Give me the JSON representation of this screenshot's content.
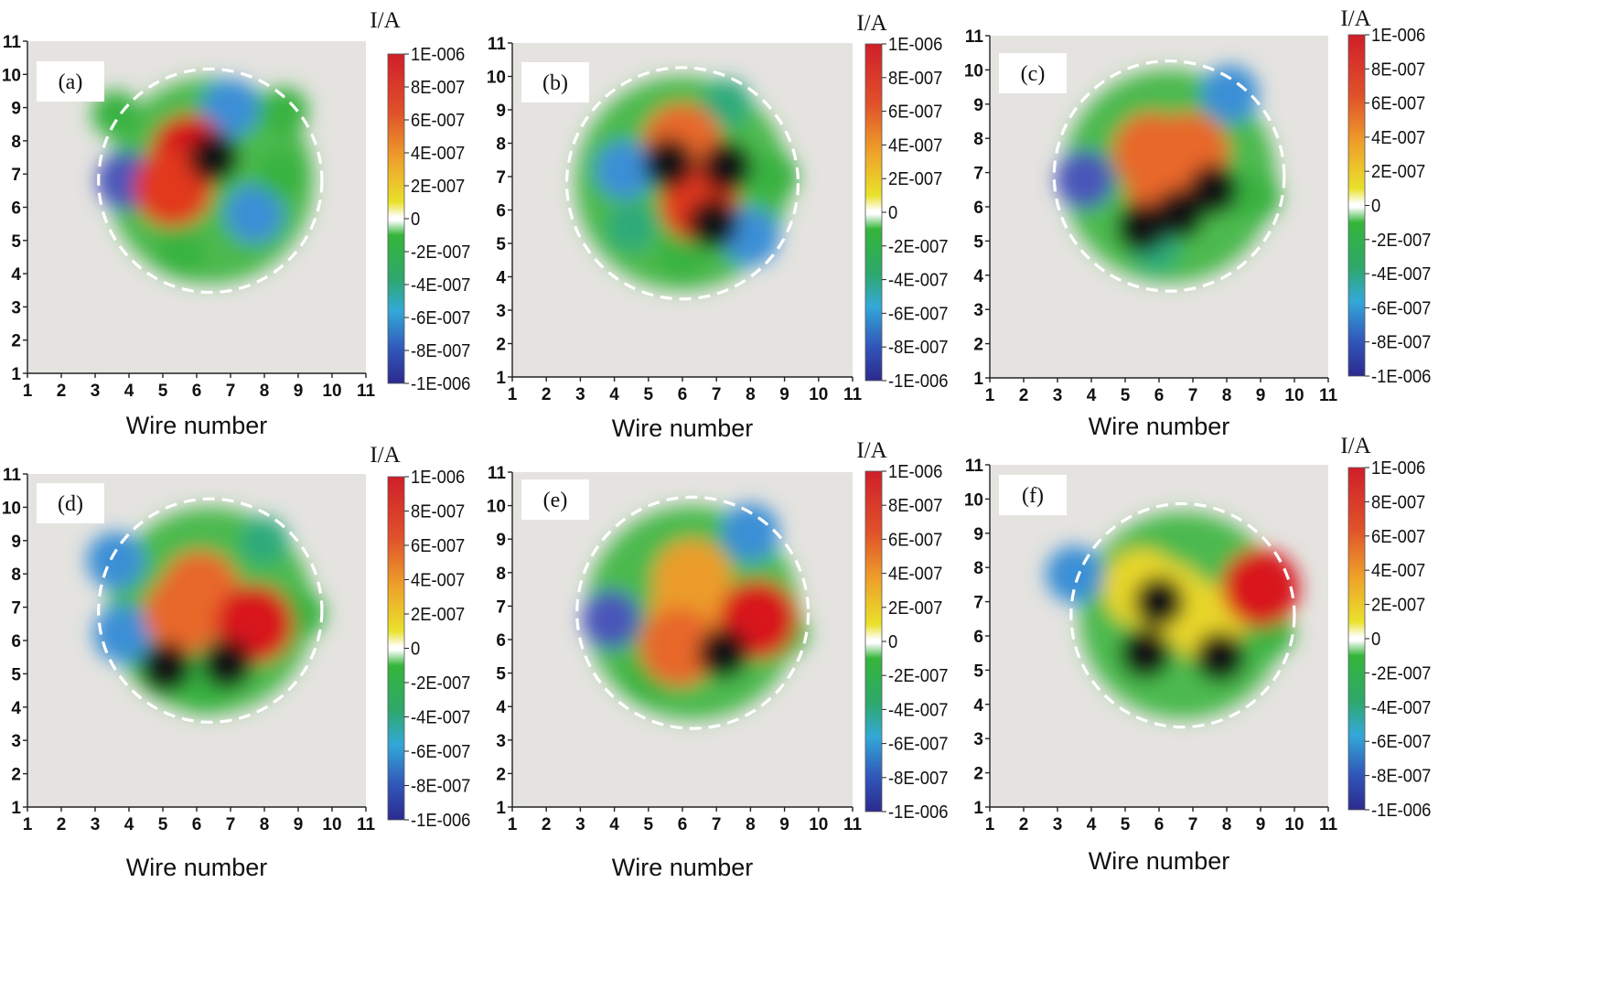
{
  "figure": {
    "xlabel": "Wire number",
    "ylabel": "",
    "colorbar_title": "I/A",
    "colorbar_ticks": [
      "1E-006",
      "8E-007",
      "6E-007",
      "4E-007",
      "2E-007",
      "0",
      "-2E-007",
      "-4E-007",
      "-6E-007",
      "-8E-007",
      "-1E-006"
    ]
  },
  "chart_data": [
    {
      "type": "heatmap",
      "panel": "(a)",
      "title": "",
      "xlabel": "Wire number",
      "ylabel": "",
      "x_ticks": [
        1,
        2,
        3,
        4,
        5,
        6,
        7,
        8,
        9,
        10,
        11
      ],
      "y_ticks": [
        1,
        2,
        3,
        4,
        5,
        6,
        7,
        8,
        9,
        10,
        11
      ],
      "xlim": [
        1,
        11
      ],
      "ylim": [
        1,
        11
      ],
      "colorbar": "I/A",
      "zlim": [
        -1e-06,
        1e-06
      ],
      "dashed_circle": {
        "center": [
          6.4,
          6.8
        ],
        "radius": 3.3
      },
      "features": [
        {
          "x": 5.8,
          "y": 7.6,
          "value": 1e-06
        },
        {
          "x": 6.5,
          "y": 7.5,
          "value": 2e-06
        },
        {
          "x": 5.3,
          "y": 6.6,
          "value": 8e-07
        },
        {
          "x": 3.9,
          "y": 6.8,
          "value": -8e-07
        },
        {
          "x": 7.7,
          "y": 5.8,
          "value": -7e-07
        },
        {
          "x": 7.0,
          "y": 9.0,
          "value": -7e-07
        },
        {
          "x": 8.5,
          "y": 7.0,
          "value": -3e-07
        },
        {
          "x": 5.5,
          "y": 4.6,
          "value": -3e-07
        },
        {
          "x": 3.6,
          "y": 8.8,
          "value": -3e-07
        },
        {
          "x": 8.6,
          "y": 8.9,
          "value": -3e-07
        }
      ]
    },
    {
      "type": "heatmap",
      "panel": "(b)",
      "title": "",
      "xlabel": "Wire number",
      "ylabel": "",
      "x_ticks": [
        1,
        2,
        3,
        4,
        5,
        6,
        7,
        8,
        9,
        10,
        11
      ],
      "y_ticks": [
        1,
        2,
        3,
        4,
        5,
        6,
        7,
        8,
        9,
        10,
        11
      ],
      "xlim": [
        1,
        11
      ],
      "ylim": [
        1,
        11
      ],
      "colorbar": "I/A",
      "zlim": [
        -1e-06,
        1e-06
      ],
      "dashed_circle": {
        "center": [
          6.0,
          6.8
        ],
        "radius": 3.4
      },
      "features": [
        {
          "x": 6.0,
          "y": 8.0,
          "value": 6e-07
        },
        {
          "x": 5.6,
          "y": 7.4,
          "value": 1.5e-06
        },
        {
          "x": 7.3,
          "y": 7.3,
          "value": 1.5e-06
        },
        {
          "x": 6.5,
          "y": 6.2,
          "value": 8e-07
        },
        {
          "x": 6.9,
          "y": 5.6,
          "value": 2e-06
        },
        {
          "x": 8.0,
          "y": 5.2,
          "value": -7e-07
        },
        {
          "x": 4.3,
          "y": 7.2,
          "value": -6e-07
        },
        {
          "x": 4.5,
          "y": 5.5,
          "value": -5e-07
        },
        {
          "x": 7.3,
          "y": 9.2,
          "value": -5e-07
        },
        {
          "x": 8.7,
          "y": 7.0,
          "value": -3e-07
        },
        {
          "x": 6.0,
          "y": 4.7,
          "value": -3e-07
        }
      ]
    },
    {
      "type": "heatmap",
      "panel": "(c)",
      "title": "",
      "xlabel": "Wire number",
      "ylabel": "",
      "x_ticks": [
        1,
        2,
        3,
        4,
        5,
        6,
        7,
        8,
        9,
        10,
        11
      ],
      "y_ticks": [
        1,
        2,
        3,
        4,
        5,
        6,
        7,
        8,
        9,
        10,
        11
      ],
      "xlim": [
        1,
        11
      ],
      "ylim": [
        1,
        11
      ],
      "colorbar": "I/A",
      "zlim": [
        -1e-06,
        1e-06
      ],
      "dashed_circle": {
        "center": [
          6.3,
          6.9
        ],
        "radius": 3.4
      },
      "features": [
        {
          "x": 5.8,
          "y": 7.6,
          "value": 6e-07
        },
        {
          "x": 6.9,
          "y": 7.6,
          "value": 6e-07
        },
        {
          "x": 6.2,
          "y": 6.5,
          "value": 5e-07
        },
        {
          "x": 6.6,
          "y": 5.8,
          "value": 2e-06
        },
        {
          "x": 7.6,
          "y": 6.5,
          "value": 1.5e-06
        },
        {
          "x": 5.5,
          "y": 5.4,
          "value": 1.5e-06
        },
        {
          "x": 3.8,
          "y": 6.8,
          "value": -9e-07
        },
        {
          "x": 8.1,
          "y": 9.3,
          "value": -7e-07
        },
        {
          "x": 5.9,
          "y": 4.8,
          "value": -5e-07
        },
        {
          "x": 8.9,
          "y": 6.3,
          "value": -3e-07
        }
      ]
    },
    {
      "type": "heatmap",
      "panel": "(d)",
      "title": "",
      "xlabel": "Wire number",
      "ylabel": "",
      "x_ticks": [
        1,
        2,
        3,
        4,
        5,
        6,
        7,
        8,
        9,
        10,
        11
      ],
      "y_ticks": [
        1,
        2,
        3,
        4,
        5,
        6,
        7,
        8,
        9,
        10,
        11
      ],
      "xlim": [
        1,
        11
      ],
      "ylim": [
        1,
        11
      ],
      "colorbar": "I/A",
      "zlim": [
        -1e-06,
        1e-06
      ],
      "dashed_circle": {
        "center": [
          6.4,
          6.9
        ],
        "radius": 3.3
      },
      "features": [
        {
          "x": 6.1,
          "y": 7.5,
          "value": 5e-07
        },
        {
          "x": 5.6,
          "y": 6.8,
          "value": 5e-07
        },
        {
          "x": 5.1,
          "y": 5.2,
          "value": 1.5e-06
        },
        {
          "x": 6.9,
          "y": 5.3,
          "value": 1.5e-06
        },
        {
          "x": 7.7,
          "y": 6.5,
          "value": 1.2e-06
        },
        {
          "x": 3.6,
          "y": 8.4,
          "value": -6e-07
        },
        {
          "x": 3.8,
          "y": 6.2,
          "value": -6e-07
        },
        {
          "x": 8.0,
          "y": 9.0,
          "value": -5e-07
        },
        {
          "x": 9.1,
          "y": 6.8,
          "value": -3e-07
        },
        {
          "x": 6.2,
          "y": 4.5,
          "value": -3e-07
        }
      ]
    },
    {
      "type": "heatmap",
      "panel": "(e)",
      "title": "",
      "xlabel": "Wire number",
      "ylabel": "",
      "x_ticks": [
        1,
        2,
        3,
        4,
        5,
        6,
        7,
        8,
        9,
        10,
        11
      ],
      "y_ticks": [
        1,
        2,
        3,
        4,
        5,
        6,
        7,
        8,
        9,
        10,
        11
      ],
      "xlim": [
        1,
        11
      ],
      "ylim": [
        1,
        11
      ],
      "colorbar": "I/A",
      "zlim": [
        -1e-06,
        1e-06
      ],
      "dashed_circle": {
        "center": [
          6.3,
          6.8
        ],
        "radius": 3.4
      },
      "features": [
        {
          "x": 6.3,
          "y": 7.8,
          "value": 3e-07
        },
        {
          "x": 6.2,
          "y": 6.8,
          "value": 4e-07
        },
        {
          "x": 5.9,
          "y": 5.8,
          "value": 6e-07
        },
        {
          "x": 7.2,
          "y": 5.6,
          "value": 1.5e-06
        },
        {
          "x": 8.2,
          "y": 6.6,
          "value": 1.2e-06
        },
        {
          "x": 3.9,
          "y": 6.6,
          "value": -9e-07
        },
        {
          "x": 8.0,
          "y": 9.2,
          "value": -7e-07
        },
        {
          "x": 5.0,
          "y": 4.9,
          "value": -3e-07
        },
        {
          "x": 9.0,
          "y": 6.2,
          "value": -3e-07
        }
      ]
    },
    {
      "type": "heatmap",
      "panel": "(f)",
      "title": "",
      "xlabel": "Wire number",
      "ylabel": "",
      "x_ticks": [
        1,
        2,
        3,
        4,
        5,
        6,
        7,
        8,
        9,
        10,
        11
      ],
      "y_ticks": [
        1,
        2,
        3,
        4,
        5,
        6,
        7,
        8,
        9,
        10,
        11
      ],
      "xlim": [
        1,
        11
      ],
      "ylim": [
        1,
        11
      ],
      "colorbar": "I/A",
      "zlim": [
        -1e-06,
        1e-06
      ],
      "dashed_circle": {
        "center": [
          6.7,
          6.6
        ],
        "radius": 3.3
      },
      "features": [
        {
          "x": 6.3,
          "y": 7.0,
          "value": 2e-07
        },
        {
          "x": 5.5,
          "y": 7.4,
          "value": 2e-07
        },
        {
          "x": 7.4,
          "y": 6.4,
          "value": 2e-07
        },
        {
          "x": 6.0,
          "y": 7.0,
          "value": 1.5e-06
        },
        {
          "x": 5.6,
          "y": 5.5,
          "value": 1.5e-06
        },
        {
          "x": 7.8,
          "y": 5.4,
          "value": 1.5e-06
        },
        {
          "x": 9.0,
          "y": 7.4,
          "value": 1.2e-06
        },
        {
          "x": 3.5,
          "y": 7.8,
          "value": -6e-07
        },
        {
          "x": 9.3,
          "y": 6.1,
          "value": -3e-07
        }
      ]
    }
  ]
}
